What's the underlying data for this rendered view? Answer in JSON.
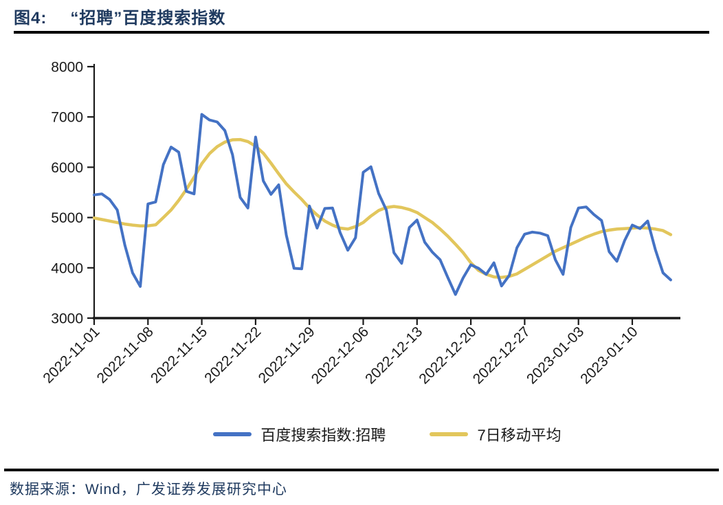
{
  "meta": {
    "navy": "#1f3a5f",
    "axis_color": "#1a1a1a",
    "background": "#ffffff"
  },
  "title": {
    "prefix": "图4:",
    "text": "“招聘”百度搜索指数"
  },
  "legend": {
    "items": [
      {
        "label": "百度搜索指数:招聘",
        "color": "#4472C4"
      },
      {
        "label": "7日移动平均",
        "color": "#E2C65C"
      }
    ]
  },
  "footer": {
    "source_label": "数据来源：Wind，广发证券发展研究中心"
  },
  "chart_data": {
    "type": "line",
    "title": "“招聘”百度搜索指数",
    "xlabel": "",
    "ylabel": "",
    "ylim": [
      3000,
      8000
    ],
    "yticks": [
      8000,
      7000,
      6000,
      5000,
      4000,
      3000
    ],
    "grid": false,
    "legend_position": "bottom",
    "xtick_every_days": 7,
    "xtick_labels": [
      "2022-11-01",
      "2022-11-08",
      "2022-11-15",
      "2022-11-22",
      "2022-11-29",
      "2022-12-06",
      "2022-12-13",
      "2022-12-20",
      "2022-12-27",
      "2023-01-03",
      "2023-01-10"
    ],
    "x": [
      "2022-11-01",
      "2022-11-02",
      "2022-11-03",
      "2022-11-04",
      "2022-11-05",
      "2022-11-06",
      "2022-11-07",
      "2022-11-08",
      "2022-11-09",
      "2022-11-10",
      "2022-11-11",
      "2022-11-12",
      "2022-11-13",
      "2022-11-14",
      "2022-11-15",
      "2022-11-16",
      "2022-11-17",
      "2022-11-18",
      "2022-11-19",
      "2022-11-20",
      "2022-11-21",
      "2022-11-22",
      "2022-11-23",
      "2022-11-24",
      "2022-11-25",
      "2022-11-26",
      "2022-11-27",
      "2022-11-28",
      "2022-11-29",
      "2022-11-30",
      "2022-12-01",
      "2022-12-02",
      "2022-12-03",
      "2022-12-04",
      "2022-12-05",
      "2022-12-06",
      "2022-12-07",
      "2022-12-08",
      "2022-12-09",
      "2022-12-10",
      "2022-12-11",
      "2022-12-12",
      "2022-12-13",
      "2022-12-14",
      "2022-12-15",
      "2022-12-16",
      "2022-12-17",
      "2022-12-18",
      "2022-12-19",
      "2022-12-20",
      "2022-12-21",
      "2022-12-22",
      "2022-12-23",
      "2022-12-24",
      "2022-12-25",
      "2022-12-26",
      "2022-12-27",
      "2022-12-28",
      "2022-12-29",
      "2022-12-30",
      "2022-12-31",
      "2023-01-01",
      "2023-01-02",
      "2023-01-03",
      "2023-01-04",
      "2023-01-05",
      "2023-01-06",
      "2023-01-07",
      "2023-01-08",
      "2023-01-09",
      "2023-01-10",
      "2023-01-11",
      "2023-01-12",
      "2023-01-13",
      "2023-01-14",
      "2023-01-15"
    ],
    "series": [
      {
        "name": "百度搜索指数:招聘",
        "color": "#4472C4",
        "width": 4,
        "values": [
          5450,
          5470,
          5360,
          5150,
          4450,
          3900,
          3630,
          5270,
          5310,
          6050,
          6400,
          6300,
          5520,
          5470,
          7050,
          6940,
          6900,
          6730,
          6250,
          5400,
          5190,
          6600,
          5730,
          5460,
          5650,
          4650,
          3990,
          3980,
          5230,
          4790,
          5180,
          5190,
          4700,
          4350,
          4600,
          5900,
          6010,
          5480,
          5150,
          4300,
          4090,
          4800,
          4950,
          4510,
          4310,
          4160,
          3810,
          3470,
          3800,
          4060,
          3990,
          3870,
          4100,
          3640,
          3850,
          4400,
          4670,
          4710,
          4690,
          4640,
          4160,
          3870,
          4800,
          5190,
          5210,
          5060,
          4940,
          4320,
          4130,
          4540,
          4850,
          4780,
          4930,
          4360,
          3900,
          3760
        ]
      },
      {
        "name": "7日移动平均",
        "color": "#E2C65C",
        "width": 4.5,
        "values": [
          4990,
          4960,
          4930,
          4900,
          4870,
          4850,
          4835,
          4835,
          4855,
          5000,
          5150,
          5340,
          5560,
          5800,
          6070,
          6270,
          6410,
          6500,
          6545,
          6550,
          6510,
          6420,
          6280,
          6080,
          5870,
          5670,
          5510,
          5360,
          5190,
          5050,
          4930,
          4850,
          4790,
          4770,
          4820,
          4900,
          5030,
          5140,
          5200,
          5220,
          5200,
          5160,
          5100,
          5000,
          4900,
          4770,
          4630,
          4470,
          4300,
          4100,
          3950,
          3870,
          3820,
          3810,
          3830,
          3880,
          3970,
          4060,
          4150,
          4240,
          4330,
          4400,
          4470,
          4540,
          4610,
          4670,
          4720,
          4750,
          4770,
          4780,
          4790,
          4800,
          4790,
          4770,
          4740,
          4660
        ]
      }
    ]
  }
}
